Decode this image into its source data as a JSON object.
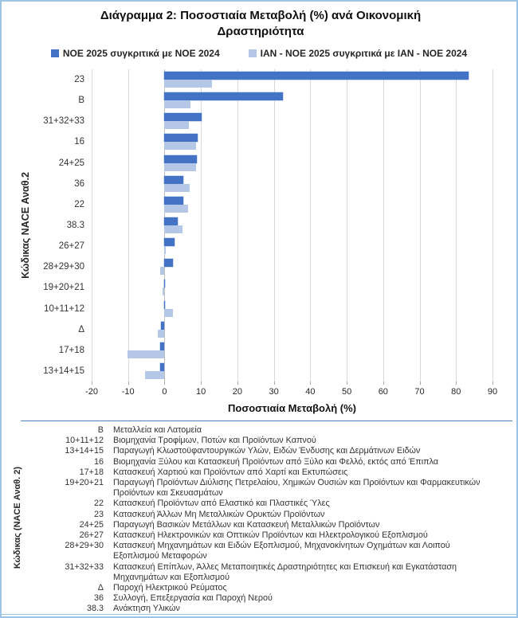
{
  "title": "Διάγραμμα 2: Ποσοστιαία Μεταβολή (%) ανά Οικονομική Δραστηριότητα",
  "colors": {
    "series1": "#4472C4",
    "series2": "#B4C7E7",
    "grid": "#D9D9D9",
    "separator": "#4F81BD",
    "frame": "#9DC3E6"
  },
  "chart_data": {
    "type": "bar",
    "orientation": "horizontal",
    "title": "Διάγραμμα 2: Ποσοστιαία Μεταβολή (%) ανά Οικονομική Δραστηριότητα",
    "xlabel": "Ποσοστιαία Μεταβολή (%)",
    "ylabel": "Κώδικας NACE Αναθ.2",
    "xlim": [
      -20,
      90
    ],
    "xticks": [
      -20,
      -10,
      0,
      10,
      20,
      30,
      40,
      50,
      60,
      70,
      80,
      90
    ],
    "grid": true,
    "legend_position": "top",
    "categories": [
      "23",
      "B",
      "31+32+33",
      "16",
      "24+25",
      "36",
      "22",
      "38.3",
      "26+27",
      "28+29+30",
      "19+20+21",
      "10+11+12",
      "Δ",
      "17+18",
      "13+14+15"
    ],
    "series": [
      {
        "name": "ΝΟΕ 2025 συγκριτικά με ΝΟΕ 2024",
        "color": "#4472C4",
        "values": [
          83.5,
          32.5,
          10.2,
          9.1,
          8.8,
          5.2,
          5.1,
          3.7,
          2.7,
          2.4,
          0.1,
          0.1,
          -0.9,
          -1.1,
          -1.1
        ]
      },
      {
        "name": "ΙΑΝ - ΝΟΕ 2025 συγκριτικά με ΙΑΝ - ΝΟΕ 2024",
        "color": "#B4C7E7",
        "values": [
          13.0,
          7.2,
          6.6,
          8.6,
          8.6,
          7.0,
          6.5,
          5.0,
          0.4,
          -1.2,
          -0.5,
          2.4,
          -1.9,
          -10.1,
          -5.4
        ]
      }
    ]
  },
  "code_table": {
    "ylabel": "Κώδικας (NACE Αναθ. 2)",
    "rows": [
      {
        "code": "B",
        "desc": "Μεταλλεία και Λατομεία"
      },
      {
        "code": "10+11+12",
        "desc": "Βιομηχανία Τροφίμων, Ποτών και Προϊόντων Καπνού"
      },
      {
        "code": "13+14+15",
        "desc": "Παραγωγή Κλωστοϋφαντουργικών Υλών, Ειδών Ένδυσης και Δερμάτινων Ειδών"
      },
      {
        "code": "16",
        "desc": "Βιομηχανία Ξύλου και Κατασκευή Προϊόντων από Ξύλο και Φελλό, εκτός από Έπιπλα"
      },
      {
        "code": "17+18",
        "desc": "Κατασκευή Χαρτιού και Προϊόντων από Χαρτί και Εκτυπώσεις"
      },
      {
        "code": "19+20+21",
        "desc": "Παραγωγή Προϊόντων Διύλισης Πετρελαίου, Χημικών Ουσιών και Προϊόντων και Φαρμακευτικών Προϊόντων και Σκευασμάτων"
      },
      {
        "code": "22",
        "desc": "Κατασκευή Προϊόντων από Ελαστικό και Πλαστικές Ύλες"
      },
      {
        "code": "23",
        "desc": "Κατασκευή Άλλων Μη Μεταλλικών Ορυκτών Προϊόντων"
      },
      {
        "code": "24+25",
        "desc": "Παραγωγή Βασικών Μετάλλων και Κατασκευή Μεταλλικών Προϊόντων"
      },
      {
        "code": "26+27",
        "desc": "Κατασκευή Ηλεκτρονικών και Οπτικών Προϊόντων και Ηλεκτρολογικού Εξοπλισμού"
      },
      {
        "code": "28+29+30",
        "desc": "Κατασκευή Μηχανημάτων και Ειδών Εξοπλισμού, Μηχανοκίνητων Οχημάτων και Λοιπού Εξοπλισμού Μεταφορών"
      },
      {
        "code": "31+32+33",
        "desc": "Κατασκευή Επίπλων, Άλλες Μεταποιητικές Δραστηριότητες και Επισκευή και Εγκατάσταση Μηχανημάτων και Εξοπλισμού"
      },
      {
        "code": "Δ",
        "desc": "Παροχή Ηλεκτρικού Ρεύματος"
      },
      {
        "code": "36",
        "desc": "Συλλογή, Επεξεργασία και Παροχή Νερού"
      },
      {
        "code": "38.3",
        "desc": "Ανάκτηση Υλικών"
      }
    ]
  }
}
